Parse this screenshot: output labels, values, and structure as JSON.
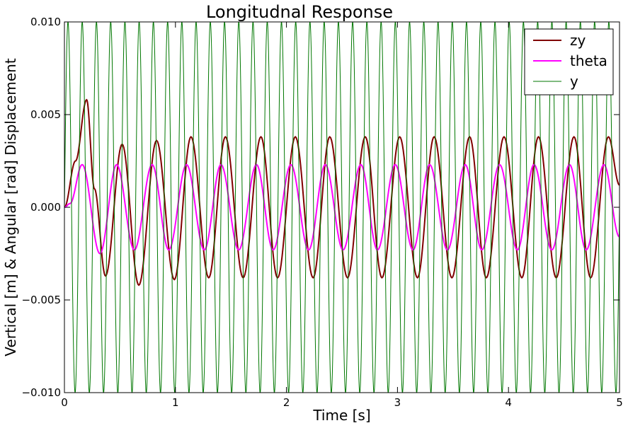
{
  "chart_data": {
    "type": "line",
    "title": "Longitudnal Response",
    "xlabel": "Time [s]",
    "ylabel": "Vertical [m] & Angular [rad] Displacement",
    "xlim": [
      0,
      5
    ],
    "ylim": [
      -0.01,
      0.01
    ],
    "x_ticks": [
      "0",
      "1",
      "2",
      "3",
      "4",
      "5"
    ],
    "y_ticks": [
      "−0.010",
      "−0.005",
      "0.000",
      "0.005",
      "0.010"
    ],
    "grid": false,
    "legend_position": "top-right",
    "series": [
      {
        "name": "zy",
        "color": "#800000",
        "x": [
          0,
          0.1,
          0.2,
          0.27,
          0.37,
          0.52,
          0.67,
          0.83,
          0.99,
          1.14,
          1.3,
          1.45,
          1.61,
          1.77,
          1.92,
          2.08,
          2.24,
          2.39,
          2.55,
          2.71,
          2.86,
          3.02,
          3.18,
          3.33,
          3.49,
          3.65,
          3.8,
          3.96,
          4.12,
          4.27,
          4.43,
          4.59,
          4.74,
          4.9,
          5.0
        ],
        "values": [
          0,
          0.0025,
          0.0058,
          0.001,
          -0.0037,
          0.0034,
          -0.0042,
          0.0036,
          -0.0039,
          0.0038,
          -0.0038,
          0.0038,
          -0.0038,
          0.0038,
          -0.0038,
          0.0038,
          -0.0038,
          0.0038,
          -0.0038,
          0.0038,
          -0.0038,
          0.0038,
          -0.0038,
          0.0038,
          -0.0038,
          0.0038,
          -0.0038,
          0.0038,
          -0.0038,
          0.0038,
          -0.0038,
          0.0038,
          -0.0038,
          0.0038,
          0.0012
        ]
      },
      {
        "name": "theta",
        "color": "#ff00ff",
        "x": [
          0,
          0.05,
          0.16,
          0.32,
          0.47,
          0.63,
          0.79,
          0.94,
          1.1,
          1.26,
          1.41,
          1.57,
          1.73,
          1.88,
          2.04,
          2.2,
          2.35,
          2.51,
          2.67,
          2.82,
          2.98,
          3.14,
          3.29,
          3.45,
          3.61,
          3.76,
          3.92,
          4.08,
          4.23,
          4.39,
          4.55,
          4.7,
          4.86,
          5.0
        ],
        "values": [
          0,
          0.0002,
          0.0023,
          -0.0025,
          0.0023,
          -0.0023,
          0.0023,
          -0.0023,
          0.0023,
          -0.0023,
          0.0023,
          -0.0023,
          0.0023,
          -0.0023,
          0.0023,
          -0.0023,
          0.0023,
          -0.0023,
          0.0023,
          -0.0023,
          0.0023,
          -0.0023,
          0.0023,
          -0.0023,
          0.0023,
          -0.0023,
          0.0023,
          -0.0023,
          0.0023,
          -0.0023,
          0.0023,
          -0.0023,
          0.0023,
          -0.0016
        ]
      },
      {
        "name": "y",
        "color": "#007700",
        "amplitude": 0.01,
        "frequency_hz": 7.8,
        "x": [
          0,
          0.032,
          0.064,
          0.096,
          0.128,
          0.16,
          0.192,
          0.224,
          0.256,
          0.288,
          0.32
        ],
        "values": [
          0,
          0.01,
          0,
          -0.01,
          0,
          0.01,
          0,
          -0.01,
          0,
          0.01,
          0
        ]
      }
    ]
  }
}
